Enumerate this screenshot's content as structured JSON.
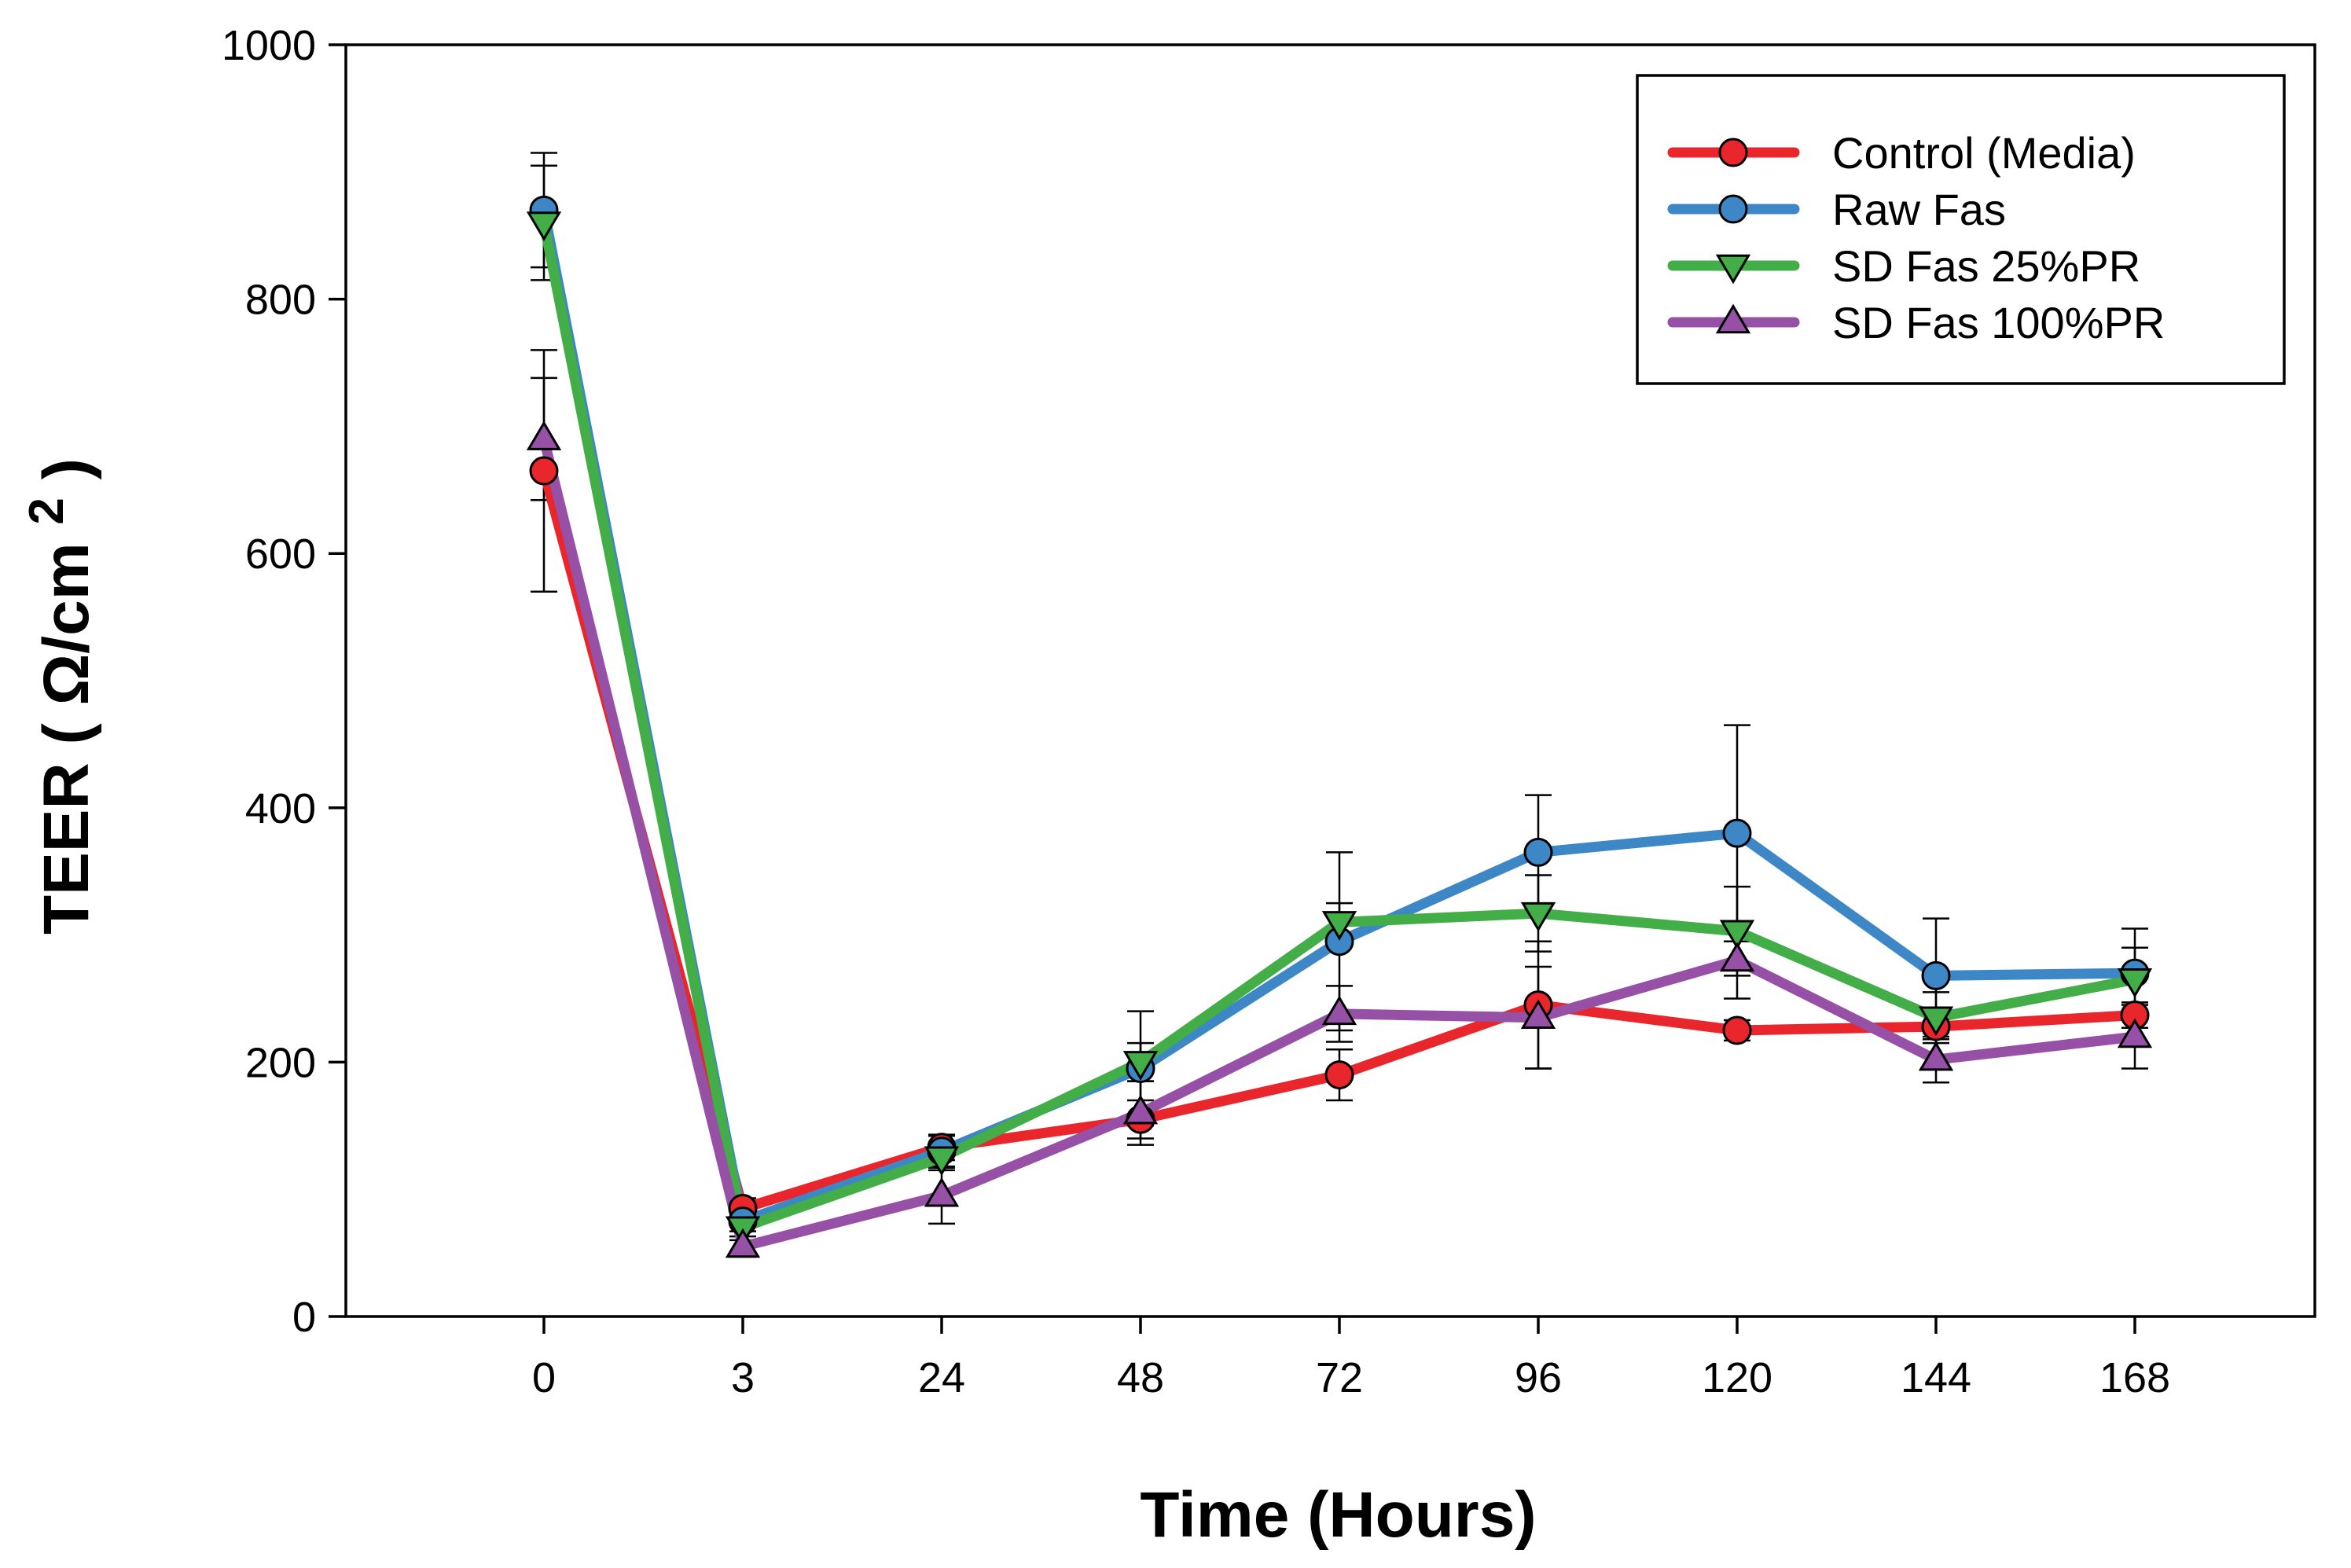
{
  "chart_data": {
    "type": "line",
    "title": "",
    "xlabel": "Time (Hours)",
    "ylabel": {
      "prefix": "TEER ( ",
      "unit": "Ω/cm",
      "superscript": "2",
      "suffix": " )"
    },
    "categories": [
      "0",
      "3",
      "24",
      "48",
      "72",
      "96",
      "120",
      "144",
      "168"
    ],
    "ylim": [
      0,
      1000
    ],
    "yticks": [
      "0",
      "200",
      "400",
      "600",
      "800",
      "1000"
    ],
    "grid": false,
    "legend_position": "top-right",
    "series": [
      {
        "name": "Control (Media)",
        "color": "#e8262b",
        "marker": "circle",
        "marker_fill": "#e8262b",
        "values": [
          665,
          85,
          133,
          155,
          190,
          245,
          225,
          228,
          237
        ],
        "errors": [
          95,
          8,
          10,
          15,
          20,
          50,
          8,
          10,
          10
        ]
      },
      {
        "name": "Raw Fas",
        "color": "#3d87c6",
        "marker": "circle",
        "marker_fill": "#3d87c6",
        "values": [
          870,
          75,
          130,
          195,
          295,
          365,
          380,
          268,
          270
        ],
        "errors": [
          45,
          8,
          12,
          45,
          70,
          45,
          85,
          45,
          35
        ]
      },
      {
        "name": "SD Fas 25%PR",
        "color": "#43ad48",
        "marker": "triangle-down",
        "marker_fill": "#43ad48",
        "values": [
          860,
          70,
          125,
          200,
          310,
          317,
          303,
          235,
          265
        ],
        "errors": [
          45,
          10,
          10,
          15,
          15,
          30,
          35,
          20,
          25
        ]
      },
      {
        "name": "SD Fas 100%PR",
        "color": "#9650a5",
        "marker": "triangle-up",
        "marker_fill": "#9650a5",
        "values": [
          690,
          55,
          95,
          160,
          238,
          235,
          280,
          202,
          220
        ],
        "errors": [
          48,
          8,
          22,
          25,
          22,
          40,
          30,
          18,
          25
        ]
      }
    ]
  }
}
